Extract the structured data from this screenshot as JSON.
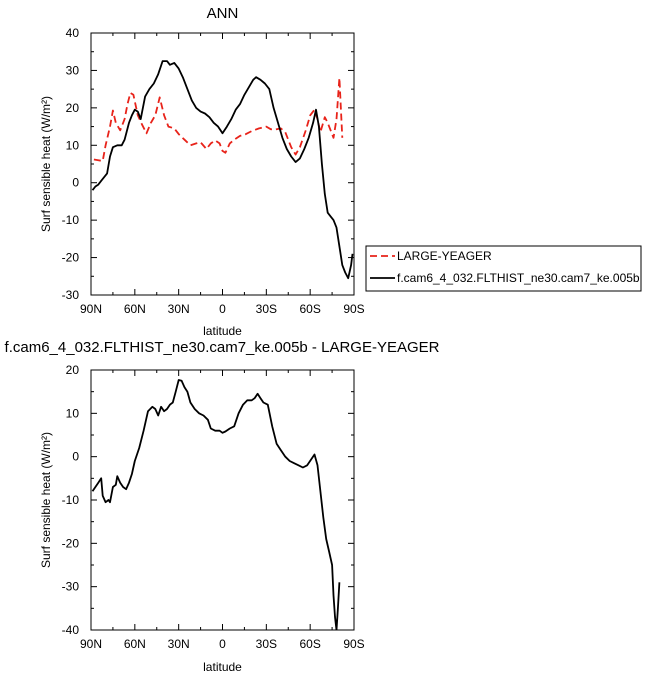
{
  "chart_data": [
    {
      "type": "line",
      "title": "ANN",
      "xlabel": "latitude",
      "ylabel": "Surf sensible heat (W/m²)",
      "xlim": [
        90,
        -90
      ],
      "ylim": [
        -30,
        40
      ],
      "x_ticks": [
        90,
        60,
        30,
        0,
        -30,
        -60,
        -90
      ],
      "x_tick_labels": [
        "90N",
        "60N",
        "30N",
        "0",
        "30S",
        "60S",
        "90S"
      ],
      "y_ticks": [
        -30,
        -20,
        -10,
        0,
        10,
        20,
        30,
        40
      ],
      "y_tick_labels": [
        "-30",
        "-20",
        "-10",
        "0",
        "10",
        "20",
        "30",
        "40"
      ],
      "legend_position": "outside-right",
      "series": [
        {
          "name": "LARGE-YEAGER",
          "color": "#e8231a",
          "dash": "dashed",
          "points": [
            [
              88,
              6.2
            ],
            [
              85,
              6
            ],
            [
              82,
              5.8
            ],
            [
              80,
              10
            ],
            [
              77,
              15
            ],
            [
              75,
              19.3
            ],
            [
              73,
              16
            ],
            [
              70,
              14
            ],
            [
              67,
              17
            ],
            [
              65,
              21
            ],
            [
              63,
              24
            ],
            [
              61,
              23.5
            ],
            [
              58,
              18
            ],
            [
              55,
              15.5
            ],
            [
              52,
              13.2
            ],
            [
              49,
              16
            ],
            [
              46,
              18
            ],
            [
              43,
              22.8
            ],
            [
              40,
              18
            ],
            [
              37,
              15
            ],
            [
              33,
              14.5
            ],
            [
              30,
              13
            ],
            [
              26,
              11.5
            ],
            [
              22,
              10
            ],
            [
              18,
              10.5
            ],
            [
              15,
              10.8
            ],
            [
              11,
              9
            ],
            [
              8,
              10.5
            ],
            [
              5,
              11.3
            ],
            [
              2,
              10.5
            ],
            [
              0,
              8.5
            ],
            [
              -2,
              8
            ],
            [
              -5,
              10.5
            ],
            [
              -8,
              11.5
            ],
            [
              -12,
              12.5
            ],
            [
              -16,
              13
            ],
            [
              -20,
              13.8
            ],
            [
              -25,
              14.5
            ],
            [
              -30,
              15
            ],
            [
              -33,
              14.3
            ],
            [
              -36,
              14.2
            ],
            [
              -40,
              14.5
            ],
            [
              -43,
              13.5
            ],
            [
              -47,
              9.5
            ],
            [
              -50,
              7.5
            ],
            [
              -53,
              9.5
            ],
            [
              -57,
              14
            ],
            [
              -60,
              18
            ],
            [
              -63,
              19.5
            ],
            [
              -65,
              17
            ],
            [
              -67,
              13.5
            ],
            [
              -70,
              17.5
            ],
            [
              -72,
              16
            ],
            [
              -74,
              14
            ],
            [
              -76,
              12
            ],
            [
              -78,
              17
            ],
            [
              -80,
              28
            ],
            [
              -82,
              12
            ]
          ]
        },
        {
          "name": "f.cam6_4_032.FLTHIST_ne30.cam7_ke.005b",
          "color": "#000000",
          "dash": "solid",
          "points": [
            [
              89,
              -2
            ],
            [
              87,
              -1
            ],
            [
              85,
              -0.5
            ],
            [
              83,
              0.5
            ],
            [
              81,
              1.5
            ],
            [
              79,
              2.5
            ],
            [
              77,
              7
            ],
            [
              75,
              9.5
            ],
            [
              72,
              10
            ],
            [
              69,
              10
            ],
            [
              67,
              11.5
            ],
            [
              64,
              16
            ],
            [
              62,
              18
            ],
            [
              60,
              19.5
            ],
            [
              58,
              19
            ],
            [
              56,
              17
            ],
            [
              53,
              23
            ],
            [
              50,
              25
            ],
            [
              47,
              26.5
            ],
            [
              44,
              29
            ],
            [
              41,
              32.5
            ],
            [
              38,
              32.5
            ],
            [
              36,
              31.5
            ],
            [
              33,
              32
            ],
            [
              30,
              30.5
            ],
            [
              27,
              28
            ],
            [
              24,
              25
            ],
            [
              21,
              22
            ],
            [
              18,
              20
            ],
            [
              15,
              19
            ],
            [
              12,
              18.5
            ],
            [
              9,
              17.5
            ],
            [
              6,
              16
            ],
            [
              3,
              15
            ],
            [
              0,
              13.2
            ],
            [
              -3,
              15
            ],
            [
              -6,
              17
            ],
            [
              -9,
              19.5
            ],
            [
              -12,
              21
            ],
            [
              -15,
              23.5
            ],
            [
              -18,
              25.5
            ],
            [
              -21,
              27.5
            ],
            [
              -23,
              28.2
            ],
            [
              -26,
              27.5
            ],
            [
              -29,
              26.5
            ],
            [
              -32,
              25
            ],
            [
              -35,
              20
            ],
            [
              -38,
              16
            ],
            [
              -41,
              12
            ],
            [
              -44,
              9
            ],
            [
              -47,
              7
            ],
            [
              -50,
              5.5
            ],
            [
              -53,
              6.5
            ],
            [
              -56,
              9
            ],
            [
              -59,
              12
            ],
            [
              -62,
              16
            ],
            [
              -64,
              19.5
            ],
            [
              -66,
              15
            ],
            [
              -68,
              5
            ],
            [
              -70,
              -3
            ],
            [
              -72,
              -8
            ],
            [
              -74,
              -9
            ],
            [
              -76,
              -10
            ],
            [
              -78,
              -12
            ],
            [
              -80,
              -17
            ],
            [
              -82,
              -22
            ],
            [
              -84,
              -24
            ],
            [
              -86,
              -25.5
            ],
            [
              -88,
              -22
            ],
            [
              -89,
              -19
            ]
          ]
        }
      ]
    },
    {
      "type": "line",
      "title": "f.cam6_4_032.FLTHIST_ne30.cam7_ke.005b - LARGE-YEAGER",
      "xlabel": "latitude",
      "ylabel": "Surf sensible heat (W/m²)",
      "xlim": [
        90,
        -90
      ],
      "ylim": [
        -40,
        20
      ],
      "x_ticks": [
        90,
        60,
        30,
        0,
        -30,
        -60,
        -90
      ],
      "x_tick_labels": [
        "90N",
        "60N",
        "30N",
        "0",
        "30S",
        "60S",
        "90S"
      ],
      "y_ticks": [
        -40,
        -30,
        -20,
        -10,
        0,
        10,
        20
      ],
      "y_tick_labels": [
        "-40",
        "-30",
        "-20",
        "-10",
        "0",
        "10",
        "20"
      ],
      "series": [
        {
          "color": "#000000",
          "dash": "solid",
          "points": [
            [
              89,
              -8
            ],
            [
              87,
              -7
            ],
            [
              85,
              -6
            ],
            [
              83,
              -5
            ],
            [
              82,
              -9
            ],
            [
              80,
              -10.5
            ],
            [
              78,
              -10
            ],
            [
              77,
              -10.5
            ],
            [
              75,
              -7
            ],
            [
              73,
              -6.5
            ],
            [
              72,
              -4.5
            ],
            [
              70,
              -6
            ],
            [
              68,
              -7
            ],
            [
              66,
              -7.5
            ],
            [
              64,
              -6
            ],
            [
              62,
              -4
            ],
            [
              60,
              -1
            ],
            [
              57,
              2
            ],
            [
              54,
              6
            ],
            [
              51,
              10.5
            ],
            [
              48,
              11.5
            ],
            [
              46,
              11
            ],
            [
              44,
              9.5
            ],
            [
              42,
              11.5
            ],
            [
              40,
              10.5
            ],
            [
              38,
              11
            ],
            [
              36,
              12
            ],
            [
              34,
              12.5
            ],
            [
              32,
              15
            ],
            [
              30,
              17.7
            ],
            [
              28,
              17.5
            ],
            [
              26,
              16
            ],
            [
              24,
              15
            ],
            [
              22,
              12.5
            ],
            [
              19,
              11
            ],
            [
              16,
              10
            ],
            [
              13,
              9.5
            ],
            [
              10,
              8.5
            ],
            [
              8,
              6.5
            ],
            [
              5,
              6
            ],
            [
              2,
              6
            ],
            [
              0,
              5.5
            ],
            [
              -2,
              5.8
            ],
            [
              -5,
              6.5
            ],
            [
              -8,
              7
            ],
            [
              -11,
              10
            ],
            [
              -14,
              12
            ],
            [
              -17,
              13
            ],
            [
              -20,
              13
            ],
            [
              -22,
              13.5
            ],
            [
              -24,
              14.5
            ],
            [
              -26,
              13.5
            ],
            [
              -28,
              12.5
            ],
            [
              -31,
              12
            ],
            [
              -34,
              7
            ],
            [
              -37,
              3
            ],
            [
              -40,
              1.5
            ],
            [
              -43,
              0
            ],
            [
              -46,
              -1
            ],
            [
              -49,
              -1.5
            ],
            [
              -52,
              -2
            ],
            [
              -55,
              -2.5
            ],
            [
              -58,
              -2
            ],
            [
              -61,
              -0.5
            ],
            [
              -63,
              0.5
            ],
            [
              -65,
              -2
            ],
            [
              -67,
              -8
            ],
            [
              -69,
              -14
            ],
            [
              -71,
              -19
            ],
            [
              -73,
              -22
            ],
            [
              -75,
              -25
            ],
            [
              -76,
              -32
            ],
            [
              -77,
              -37
            ],
            [
              -78,
              -40
            ],
            [
              -79,
              -35
            ],
            [
              -80,
              -29
            ]
          ]
        }
      ]
    }
  ]
}
